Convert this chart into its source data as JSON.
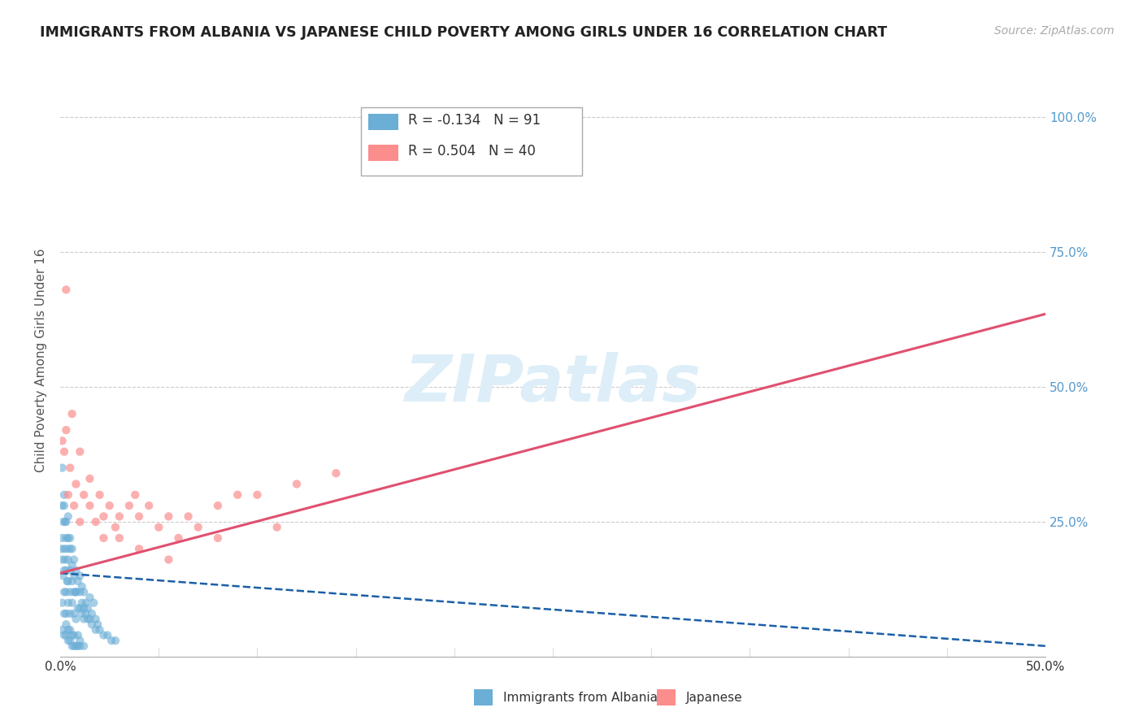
{
  "title": "IMMIGRANTS FROM ALBANIA VS JAPANESE CHILD POVERTY AMONG GIRLS UNDER 16 CORRELATION CHART",
  "source": "Source: ZipAtlas.com",
  "ylabel": "Child Poverty Among Girls Under 16",
  "watermark": "ZIPatlas",
  "legend": [
    {
      "label": "Immigrants from Albania",
      "color": "#6baed6",
      "R": -0.134,
      "N": 91
    },
    {
      "label": "Japanese",
      "color": "#fc8d8d",
      "R": 0.504,
      "N": 40
    }
  ],
  "xlim": [
    0.0,
    0.5
  ],
  "ylim": [
    0.0,
    1.1
  ],
  "xticks": [
    0.0,
    0.05,
    0.1,
    0.15,
    0.2,
    0.25,
    0.3,
    0.35,
    0.4,
    0.45,
    0.5
  ],
  "xtick_labels_show": [
    "0.0%",
    "",
    "",
    "",
    "",
    "",
    "",
    "",
    "",
    "",
    "50.0%"
  ],
  "yticks": [
    0.0,
    0.25,
    0.5,
    0.75,
    1.0
  ],
  "ytick_right_labels": [
    "",
    "25.0%",
    "50.0%",
    "75.0%",
    "100.0%"
  ],
  "albania_color": "#6baed6",
  "japanese_color": "#fc8d8d",
  "albania_line_color": "#1a5fa8",
  "japanese_line_color": "#e05070",
  "albania_trend_x0": 0.0,
  "albania_trend_y0": 0.155,
  "albania_trend_x1": 0.5,
  "albania_trend_y1": 0.02,
  "japanese_trend_x0": 0.0,
  "japanese_trend_y0": 0.155,
  "japanese_trend_x1": 0.5,
  "japanese_trend_y1": 0.635,
  "bg_color": "#ffffff",
  "grid_color": "#cccccc",
  "watermark_color": "#ddeef8",
  "albania_scatter_x": [
    0.0005,
    0.001,
    0.001,
    0.001,
    0.0015,
    0.0015,
    0.002,
    0.002,
    0.002,
    0.002,
    0.0025,
    0.0025,
    0.003,
    0.003,
    0.003,
    0.003,
    0.0035,
    0.0035,
    0.004,
    0.004,
    0.004,
    0.004,
    0.005,
    0.005,
    0.005,
    0.005,
    0.006,
    0.006,
    0.006,
    0.007,
    0.007,
    0.007,
    0.008,
    0.008,
    0.008,
    0.009,
    0.009,
    0.01,
    0.01,
    0.011,
    0.011,
    0.012,
    0.012,
    0.013,
    0.014,
    0.015,
    0.016,
    0.017,
    0.018,
    0.019,
    0.001,
    0.001,
    0.002,
    0.002,
    0.003,
    0.003,
    0.004,
    0.004,
    0.005,
    0.005,
    0.006,
    0.006,
    0.007,
    0.007,
    0.008,
    0.009,
    0.01,
    0.01,
    0.011,
    0.012,
    0.013,
    0.014,
    0.015,
    0.016,
    0.018,
    0.02,
    0.022,
    0.024,
    0.026,
    0.028,
    0.001,
    0.002,
    0.003,
    0.004,
    0.005,
    0.006,
    0.007,
    0.008,
    0.009,
    0.01,
    0.012
  ],
  "albania_scatter_y": [
    0.2,
    0.28,
    0.22,
    0.18,
    0.25,
    0.15,
    0.3,
    0.2,
    0.16,
    0.12,
    0.25,
    0.18,
    0.22,
    0.16,
    0.12,
    0.08,
    0.2,
    0.14,
    0.26,
    0.18,
    0.14,
    0.1,
    0.22,
    0.16,
    0.12,
    0.08,
    0.2,
    0.14,
    0.1,
    0.18,
    0.12,
    0.08,
    0.16,
    0.12,
    0.07,
    0.14,
    0.09,
    0.15,
    0.09,
    0.13,
    0.08,
    0.12,
    0.07,
    0.1,
    0.09,
    0.11,
    0.08,
    0.1,
    0.07,
    0.06,
    0.35,
    0.1,
    0.28,
    0.08,
    0.25,
    0.06,
    0.22,
    0.05,
    0.2,
    0.05,
    0.17,
    0.04,
    0.15,
    0.04,
    0.12,
    0.04,
    0.12,
    0.03,
    0.1,
    0.09,
    0.08,
    0.07,
    0.07,
    0.06,
    0.05,
    0.05,
    0.04,
    0.04,
    0.03,
    0.03,
    0.05,
    0.04,
    0.04,
    0.03,
    0.03,
    0.02,
    0.02,
    0.02,
    0.02,
    0.02,
    0.02
  ],
  "japanese_scatter_x": [
    0.001,
    0.002,
    0.003,
    0.004,
    0.005,
    0.007,
    0.008,
    0.01,
    0.012,
    0.015,
    0.018,
    0.02,
    0.022,
    0.025,
    0.028,
    0.03,
    0.035,
    0.038,
    0.04,
    0.045,
    0.05,
    0.055,
    0.06,
    0.065,
    0.07,
    0.08,
    0.09,
    0.1,
    0.12,
    0.14,
    0.003,
    0.006,
    0.01,
    0.015,
    0.022,
    0.03,
    0.04,
    0.055,
    0.08,
    0.11
  ],
  "japanese_scatter_y": [
    0.4,
    0.38,
    0.42,
    0.3,
    0.35,
    0.28,
    0.32,
    0.25,
    0.3,
    0.28,
    0.25,
    0.3,
    0.26,
    0.28,
    0.24,
    0.26,
    0.28,
    0.3,
    0.26,
    0.28,
    0.24,
    0.26,
    0.22,
    0.26,
    0.24,
    0.28,
    0.3,
    0.3,
    0.32,
    0.34,
    0.68,
    0.45,
    0.38,
    0.33,
    0.22,
    0.22,
    0.2,
    0.18,
    0.22,
    0.24
  ]
}
